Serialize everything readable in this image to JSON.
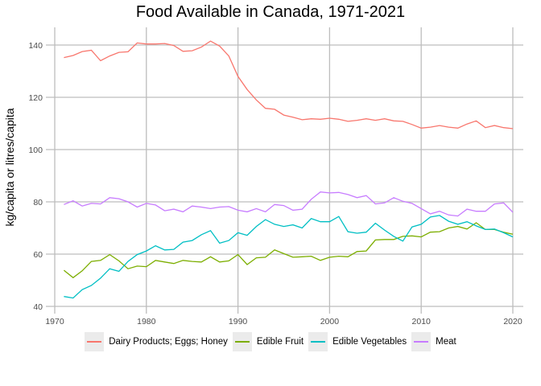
{
  "chart_data": {
    "type": "line",
    "title": "Food Available in Canada, 1971-2021",
    "xlabel": "",
    "ylabel": "kg/capita or litres/capita",
    "xlim": [
      1970,
      2021
    ],
    "ylim": [
      40,
      146
    ],
    "x_ticks": [
      1970,
      1980,
      1990,
      2000,
      2010,
      2020
    ],
    "y_ticks": [
      40,
      60,
      80,
      100,
      120,
      140
    ],
    "grid": true,
    "legend_position": "bottom",
    "x": [
      1971,
      1972,
      1973,
      1974,
      1975,
      1976,
      1977,
      1978,
      1979,
      1980,
      1981,
      1982,
      1983,
      1984,
      1985,
      1986,
      1987,
      1988,
      1989,
      1990,
      1991,
      1992,
      1993,
      1994,
      1995,
      1996,
      1997,
      1998,
      1999,
      2000,
      2001,
      2002,
      2003,
      2004,
      2005,
      2006,
      2007,
      2008,
      2009,
      2010,
      2011,
      2012,
      2013,
      2014,
      2015,
      2016,
      2017,
      2018,
      2019,
      2020
    ],
    "series": [
      {
        "name": "Dairy Products; Eggs; Honey",
        "color": "#F8766D",
        "values": [
          135.2,
          136,
          137.5,
          138,
          134,
          135.8,
          137.2,
          137.4,
          140.8,
          140.4,
          140.4,
          140.6,
          139.8,
          137.6,
          137.8,
          139.2,
          141.5,
          139.6,
          135.8,
          128,
          123,
          119,
          115.8,
          115.4,
          113.2,
          112.4,
          111.4,
          111.8,
          111.6,
          112,
          111.6,
          110.8,
          111.2,
          111.8,
          111.2,
          111.8,
          111,
          110.8,
          109.6,
          108.2,
          108.6,
          109.2,
          108.6,
          108.2,
          109.8,
          111,
          108.4,
          109.2,
          108.4,
          108
        ]
      },
      {
        "name": "Edible Fruit",
        "color": "#7CAE00",
        "values": [
          53.8,
          51,
          53.6,
          57.2,
          57.6,
          59.8,
          57.4,
          54.4,
          55.4,
          55.2,
          57.6,
          57,
          56.4,
          57.6,
          57.2,
          57,
          59,
          57,
          57.4,
          59.8,
          56,
          58.6,
          58.8,
          61.6,
          60.2,
          58.8,
          59,
          59.2,
          57.6,
          58.8,
          59.2,
          59,
          61,
          61.2,
          65.4,
          65.6,
          65.6,
          66.8,
          67,
          66.6,
          68.4,
          68.6,
          70,
          70.6,
          69.6,
          72,
          69.4,
          69.4,
          68.4,
          67.6
        ]
      },
      {
        "name": "Edible Vegetables",
        "color": "#00BFC4",
        "values": [
          43.8,
          43.2,
          46.4,
          48,
          50.8,
          54.4,
          53.4,
          57.2,
          59.8,
          61.2,
          63.2,
          61.6,
          61.8,
          64.6,
          65.2,
          67.4,
          69,
          64.2,
          65.2,
          68.2,
          67.2,
          70.6,
          73.2,
          71.4,
          70.6,
          71.2,
          70,
          73.6,
          72.4,
          72.4,
          74.4,
          68.6,
          68,
          68.4,
          71.8,
          69.2,
          66.8,
          65,
          70.4,
          71.4,
          74.2,
          74.8,
          72.6,
          71.4,
          72.4,
          70.8,
          69.4,
          69.6,
          68.2,
          66.6
        ]
      },
      {
        "name": "Meat",
        "color": "#C77CFF",
        "values": [
          79,
          80.4,
          78.4,
          79.4,
          79.2,
          81.6,
          81.2,
          80,
          78,
          79.4,
          78.8,
          76.6,
          77.2,
          76.2,
          78.4,
          78,
          77.4,
          78,
          78.2,
          76.8,
          76.2,
          77.4,
          76.2,
          79,
          78.6,
          76.8,
          77.2,
          81,
          83.8,
          83.4,
          83.6,
          82.8,
          81.6,
          82.4,
          79.2,
          79.6,
          81.6,
          80.2,
          79.4,
          77.4,
          75.4,
          76.4,
          75,
          74.6,
          77.2,
          76.4,
          76.4,
          79.2,
          79.6,
          76
        ]
      }
    ]
  }
}
